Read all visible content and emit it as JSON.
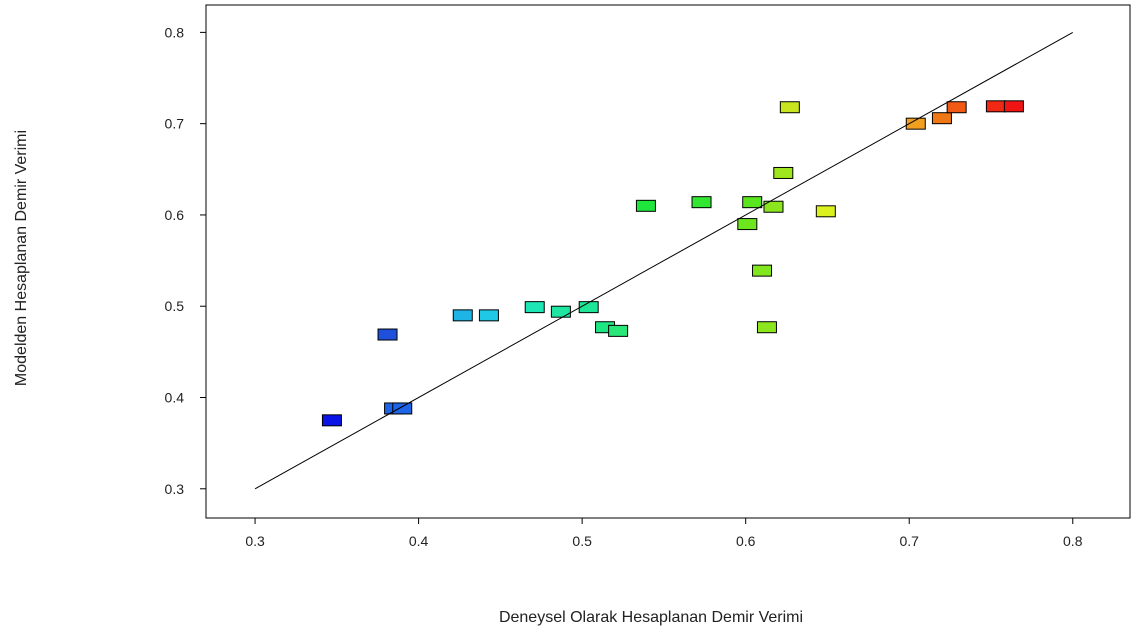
{
  "chart_data": {
    "type": "scatter",
    "title": "",
    "xlabel": "Deneysel Olarak Hesaplanan Demir Verimi",
    "ylabel": "Modelden Hesaplanan Demir Verimi",
    "xlim": [
      0.27,
      0.835
    ],
    "ylim": [
      0.268,
      0.83
    ],
    "xticks": [
      "0.3",
      "0.4",
      "0.5",
      "0.6",
      "0.7",
      "0.8"
    ],
    "yticks": [
      "0.3",
      "0.4",
      "0.5",
      "0.6",
      "0.7",
      "0.8"
    ],
    "reference_line": {
      "x": [
        0.3,
        0.8
      ],
      "y": [
        0.3,
        0.8
      ]
    },
    "grid": false,
    "legend": "none",
    "points": [
      {
        "x": 0.347,
        "y": 0.375,
        "color": "#0a14e6"
      },
      {
        "x": 0.381,
        "y": 0.469,
        "color": "#1e50dc"
      },
      {
        "x": 0.385,
        "y": 0.388,
        "color": "#1e64e6"
      },
      {
        "x": 0.39,
        "y": 0.388,
        "color": "#1e64e6"
      },
      {
        "x": 0.427,
        "y": 0.49,
        "color": "#1eb4e6"
      },
      {
        "x": 0.443,
        "y": 0.49,
        "color": "#1ec8e6"
      },
      {
        "x": 0.471,
        "y": 0.499,
        "color": "#1ee6b4"
      },
      {
        "x": 0.487,
        "y": 0.494,
        "color": "#1ee6a0"
      },
      {
        "x": 0.504,
        "y": 0.499,
        "color": "#1ee696"
      },
      {
        "x": 0.514,
        "y": 0.477,
        "color": "#1ee682"
      },
      {
        "x": 0.522,
        "y": 0.473,
        "color": "#28e678"
      },
      {
        "x": 0.539,
        "y": 0.61,
        "color": "#1ee63c"
      },
      {
        "x": 0.573,
        "y": 0.614,
        "color": "#32e632"
      },
      {
        "x": 0.601,
        "y": 0.59,
        "color": "#6ee61e"
      },
      {
        "x": 0.604,
        "y": 0.614,
        "color": "#5ae61e"
      },
      {
        "x": 0.61,
        "y": 0.539,
        "color": "#82e61e"
      },
      {
        "x": 0.613,
        "y": 0.477,
        "color": "#8ce61e"
      },
      {
        "x": 0.617,
        "y": 0.609,
        "color": "#8ce61e"
      },
      {
        "x": 0.623,
        "y": 0.646,
        "color": "#a0e61e"
      },
      {
        "x": 0.627,
        "y": 0.718,
        "color": "#c8e61e"
      },
      {
        "x": 0.649,
        "y": 0.604,
        "color": "#dcf01e"
      },
      {
        "x": 0.704,
        "y": 0.7,
        "color": "#f0a01e"
      },
      {
        "x": 0.72,
        "y": 0.706,
        "color": "#f07814"
      },
      {
        "x": 0.729,
        "y": 0.718,
        "color": "#f05a14"
      },
      {
        "x": 0.753,
        "y": 0.719,
        "color": "#f02814"
      },
      {
        "x": 0.764,
        "y": 0.719,
        "color": "#f01414"
      }
    ]
  }
}
